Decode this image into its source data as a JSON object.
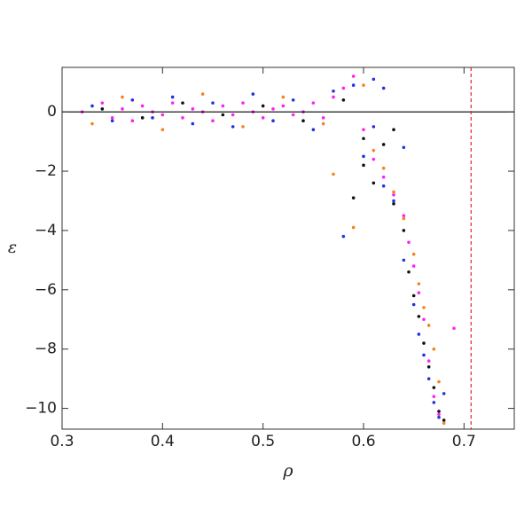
{
  "chart_data": {
    "type": "scatter",
    "x_label": "ρ",
    "y_label": "ε",
    "xlim": [
      0.3,
      0.75
    ],
    "ylim": [
      -10.7,
      1.5
    ],
    "xticks": [
      0.3,
      0.4,
      0.5,
      0.6,
      0.7
    ],
    "yticks": [
      {
        "value": 0,
        "label": "0"
      },
      {
        "value": -2,
        "label": "−2"
      },
      {
        "value": -4,
        "label": "−4"
      },
      {
        "value": -6,
        "label": "−6"
      },
      {
        "value": -8,
        "label": "−8"
      },
      {
        "value": -10,
        "label": "−10"
      }
    ],
    "hline": 0,
    "hline_color": "#000000",
    "vline": 0.707,
    "vline_color": "#e8202a",
    "series": [
      {
        "color": "#2530e0",
        "x": [
          0.33,
          0.35,
          0.37,
          0.39,
          0.41,
          0.43,
          0.45,
          0.47,
          0.49,
          0.51,
          0.53,
          0.55,
          0.57,
          0.59,
          0.61,
          0.62,
          0.6,
          0.58,
          0.63,
          0.64,
          0.65,
          0.655,
          0.66,
          0.665,
          0.67,
          0.675,
          0.68,
          0.64,
          0.62,
          0.61
        ],
        "y": [
          0.2,
          -0.3,
          0.4,
          -0.2,
          0.5,
          -0.4,
          0.3,
          -0.5,
          0.6,
          -0.3,
          0.4,
          -0.6,
          0.7,
          0.9,
          1.1,
          -2.5,
          -1.5,
          -4.2,
          -3,
          -5,
          -6.5,
          -7.5,
          -8.2,
          -9,
          -9.8,
          -10.3,
          -9.5,
          -1.2,
          0.8,
          -0.5
        ]
      },
      {
        "color": "#111111",
        "x": [
          0.34,
          0.38,
          0.42,
          0.46,
          0.5,
          0.54,
          0.58,
          0.6,
          0.61,
          0.62,
          0.63,
          0.63,
          0.64,
          0.645,
          0.65,
          0.655,
          0.66,
          0.665,
          0.67,
          0.675,
          0.68,
          0.6,
          0.59
        ],
        "y": [
          0.1,
          -0.2,
          0.3,
          -0.1,
          0.2,
          -0.3,
          0.4,
          -1.8,
          -2.4,
          -1.1,
          -3.1,
          -0.6,
          -4.0,
          -5.4,
          -6.2,
          -6.9,
          -7.8,
          -8.6,
          -9.3,
          -10.1,
          -10.4,
          -0.9,
          -2.9
        ]
      },
      {
        "color": "#f5821f",
        "x": [
          0.33,
          0.36,
          0.4,
          0.44,
          0.48,
          0.52,
          0.56,
          0.6,
          0.62,
          0.63,
          0.64,
          0.65,
          0.66,
          0.67,
          0.675,
          0.68,
          0.57,
          0.59,
          0.61,
          0.655,
          0.665
        ],
        "y": [
          -0.4,
          0.5,
          -0.6,
          0.6,
          -0.5,
          0.5,
          -0.4,
          0.9,
          -1.9,
          -2.7,
          -3.6,
          -4.8,
          -6.6,
          -8.0,
          -9.1,
          -10.5,
          -2.1,
          -3.9,
          -1.3,
          -5.8,
          -7.2
        ]
      },
      {
        "color": "#ff22ee",
        "x": [
          0.32,
          0.34,
          0.35,
          0.36,
          0.37,
          0.38,
          0.39,
          0.4,
          0.41,
          0.42,
          0.43,
          0.44,
          0.45,
          0.46,
          0.47,
          0.48,
          0.49,
          0.5,
          0.51,
          0.52,
          0.53,
          0.54,
          0.55,
          0.56,
          0.57,
          0.58,
          0.59,
          0.6,
          0.61,
          0.62,
          0.63,
          0.64,
          0.645,
          0.65,
          0.655,
          0.66,
          0.665,
          0.67,
          0.675,
          0.69
        ],
        "y": [
          0,
          0.3,
          -0.2,
          0.1,
          -0.3,
          0.2,
          0,
          -0.1,
          0.3,
          -0.2,
          0.1,
          0,
          -0.3,
          0.2,
          -0.1,
          0.3,
          0,
          -0.2,
          0.1,
          0.2,
          -0.1,
          0,
          0.3,
          -0.2,
          0.5,
          0.8,
          1.2,
          -0.6,
          -1.6,
          -2.2,
          -2.8,
          -3.5,
          -4.4,
          -5.2,
          -6.1,
          -7.0,
          -8.4,
          -9.6,
          -10.2,
          -7.3
        ]
      }
    ]
  }
}
